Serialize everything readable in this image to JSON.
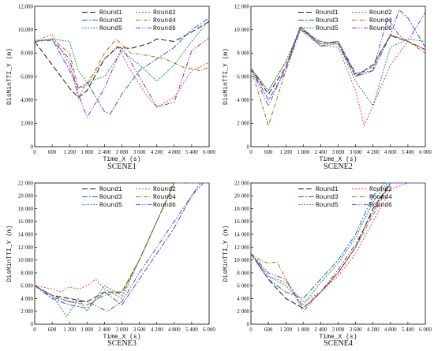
{
  "figure": {
    "series_colors": [
      "#1a1a1a",
      "#e8473d",
      "#2f5ed8",
      "#8c7a00",
      "#1c9a5a",
      "#8a2bd8"
    ],
    "series_dashes": [
      "7,3",
      "2,2",
      "7,2,2,2",
      "5,2,1,2",
      "2,1.5",
      "6,2,1.5,2,1.5,2"
    ]
  },
  "chart_data": [
    {
      "type": "line",
      "title": "SCENE1",
      "xlabel": "Time_X (s)",
      "ylabel": "DisMinTTI_Y (m)",
      "xlim": [
        0,
        6000
      ],
      "ylim": [
        0,
        12000
      ],
      "x_ticks": [
        0,
        600,
        1200,
        1800,
        2400,
        3000,
        3600,
        4200,
        4800,
        5400,
        6000
      ],
      "x_tick_labels": [
        "0",
        "600",
        "1 200",
        "1 800",
        "2 400",
        "3 000",
        "3 600",
        "4 200",
        "4 800",
        "5 400",
        "6 000"
      ],
      "y_ticks": [
        0,
        2000,
        4000,
        6000,
        8000,
        10000,
        12000
      ],
      "y_tick_labels": [
        "0",
        "2,000",
        "4,000",
        "6,000",
        "8,000",
        "10,000",
        "12,000"
      ],
      "legend_position": "top-right",
      "series": [
        {
          "name": "Round1",
          "x": [
            0,
            600,
            1200,
            1500,
            1800,
            2400,
            2850,
            3300,
            3900,
            4200,
            4800,
            5400,
            6000
          ],
          "y": [
            9000,
            7000,
            5000,
            4200,
            4800,
            7500,
            8500,
            8400,
            8800,
            9200,
            9000,
            9800,
            10700
          ]
        },
        {
          "name": "Round2",
          "x": [
            0,
            600,
            1200,
            1500,
            1800,
            2400,
            2850,
            3300,
            3900,
            4200,
            4800,
            5400,
            6000
          ],
          "y": [
            9000,
            9600,
            7000,
            4200,
            5500,
            7500,
            8600,
            6500,
            4200,
            3400,
            4200,
            6500,
            7200
          ]
        },
        {
          "name": "Round3",
          "x": [
            0,
            600,
            1200,
            1500,
            1800,
            2400,
            2600,
            3000,
            3600,
            4200,
            4800,
            5400,
            6000
          ],
          "y": [
            9000,
            9200,
            6500,
            5000,
            5500,
            3000,
            2800,
            4500,
            6500,
            7500,
            8500,
            10000,
            11000
          ]
        },
        {
          "name": "Round4",
          "x": [
            0,
            600,
            1200,
            1500,
            1800,
            2400,
            2800,
            3300,
            3900,
            4500,
            5100,
            5700,
            6000
          ],
          "y": [
            9000,
            9200,
            8000,
            5000,
            5200,
            8000,
            9200,
            8000,
            7800,
            7500,
            6800,
            6500,
            6800
          ]
        },
        {
          "name": "Round5",
          "x": [
            0,
            600,
            1200,
            1500,
            1800,
            2400,
            3000,
            3600,
            4200,
            4800,
            5400,
            6000
          ],
          "y": [
            9000,
            9200,
            9000,
            6500,
            5500,
            6000,
            8200,
            7000,
            5600,
            7000,
            9000,
            10800
          ]
        },
        {
          "name": "Round6",
          "x": [
            0,
            600,
            1200,
            1500,
            1800,
            2400,
            3000,
            3600,
            4200,
            4800,
            5400,
            6000
          ],
          "y": [
            9000,
            9100,
            7500,
            4500,
            2500,
            5000,
            8500,
            6000,
            3400,
            3800,
            8200,
            9300
          ]
        }
      ]
    },
    {
      "type": "line",
      "title": "SCENE2",
      "xlabel": "Time_X (s)",
      "ylabel": "DisMinTTI_Y (m)",
      "xlim": [
        0,
        6000
      ],
      "ylim": [
        0,
        12000
      ],
      "x_ticks": [
        0,
        600,
        1200,
        1800,
        2400,
        3000,
        3600,
        4200,
        4800,
        5400,
        6000
      ],
      "x_tick_labels": [
        "0",
        "600",
        "1 200",
        "1 800",
        "2 400",
        "3 000",
        "3 600",
        "4 200",
        "4 800",
        "5 400",
        "6 000"
      ],
      "y_ticks": [
        0,
        2000,
        4000,
        6000,
        8000,
        10000,
        12000
      ],
      "y_tick_labels": [
        "0",
        "2 000",
        "4 000",
        "6 000",
        "8 000",
        "10 000",
        "12 000"
      ],
      "legend_position": "top-right",
      "series": [
        {
          "name": "Round1",
          "x": [
            0,
            600,
            1200,
            1700,
            2400,
            3000,
            3600,
            4200,
            4800,
            5400,
            6000
          ],
          "y": [
            6700,
            4500,
            6800,
            10200,
            8800,
            9000,
            6000,
            7000,
            9500,
            9000,
            8300
          ]
        },
        {
          "name": "Round2",
          "x": [
            0,
            600,
            1200,
            1700,
            2400,
            3000,
            3600,
            3900,
            4200,
            4800,
            5400,
            6000
          ],
          "y": [
            6700,
            4800,
            7200,
            10200,
            8600,
            8500,
            4800,
            1800,
            3500,
            7000,
            9000,
            8300
          ]
        },
        {
          "name": "Round3",
          "x": [
            0,
            600,
            1200,
            1700,
            2400,
            3000,
            3600,
            4200,
            4800,
            5100,
            5400,
            6000
          ],
          "y": [
            6700,
            4000,
            6500,
            10000,
            9000,
            8800,
            6000,
            6500,
            9500,
            11700,
            11000,
            8500
          ]
        },
        {
          "name": "Round4",
          "x": [
            0,
            600,
            1200,
            1700,
            2400,
            3000,
            3600,
            4200,
            4800,
            5400,
            6000
          ],
          "y": [
            6700,
            1800,
            6500,
            10300,
            8800,
            9000,
            6200,
            6800,
            9600,
            9000,
            8000
          ]
        },
        {
          "name": "Round5",
          "x": [
            0,
            600,
            1200,
            1700,
            2400,
            3000,
            3600,
            4200,
            4800,
            5400,
            6000
          ],
          "y": [
            6700,
            4800,
            7300,
            10000,
            8600,
            8800,
            5600,
            3500,
            8500,
            9200,
            9000
          ]
        },
        {
          "name": "Round6",
          "x": [
            0,
            600,
            1200,
            1700,
            2400,
            3000,
            3600,
            4200,
            4700,
            5100,
            5400,
            6000
          ],
          "y": [
            6700,
            3500,
            6800,
            10200,
            8600,
            9000,
            6300,
            6500,
            11000,
            9500,
            9000,
            11500
          ]
        }
      ]
    },
    {
      "type": "line",
      "title": "SCENE3",
      "xlabel": "Time_X (s)",
      "ylabel": "DisMinTTI_Y (m)",
      "xlim": [
        0,
        6000
      ],
      "ylim": [
        0,
        22000
      ],
      "x_ticks": [
        0,
        600,
        1200,
        1800,
        2400,
        3000,
        3600,
        4200,
        4800,
        5400,
        6000
      ],
      "x_tick_labels": [
        "0",
        "600",
        "1 200",
        "1 800",
        "2 400",
        "3 000",
        "3 600",
        "4 200",
        "4 800",
        "5 400",
        "6 000"
      ],
      "y_ticks": [
        0,
        2000,
        4000,
        6000,
        8000,
        10000,
        12000,
        14000,
        16000,
        18000,
        20000,
        22000
      ],
      "y_tick_labels": [
        "0",
        "2 000",
        "4 000",
        "6 000",
        "8 000",
        "10 000",
        "12 000",
        "14 000",
        "16 000",
        "18 000",
        "20 000",
        "22 000"
      ],
      "legend_position": "top-right",
      "series": [
        {
          "name": "Round1",
          "x": [
            0,
            600,
            1200,
            1800,
            2400,
            3000,
            3600,
            4200,
            4800,
            5400,
            6000
          ],
          "y": [
            6000,
            4500,
            4000,
            3500,
            5000,
            5000,
            10000,
            16000,
            22000,
            22000,
            22000
          ]
        },
        {
          "name": "Round2",
          "x": [
            0,
            600,
            900,
            1200,
            1500,
            1800,
            2100,
            2400,
            3000,
            3600,
            4200,
            4800,
            5400,
            6000
          ],
          "y": [
            6000,
            5500,
            5000,
            5800,
            5500,
            6000,
            7000,
            5500,
            4000,
            10000,
            16000,
            22000,
            22000,
            22000
          ]
        },
        {
          "name": "Round3",
          "x": [
            0,
            600,
            1200,
            1800,
            2400,
            3000,
            3600,
            4200,
            4800,
            5400,
            5700,
            6000
          ],
          "y": [
            6000,
            4000,
            3000,
            2500,
            5000,
            3000,
            7000,
            11000,
            15000,
            20000,
            22000,
            22000
          ]
        },
        {
          "name": "Round4",
          "x": [
            0,
            600,
            1200,
            1800,
            2400,
            3000,
            3600,
            4200,
            4800,
            5400,
            6000
          ],
          "y": [
            6000,
            4500,
            3500,
            3000,
            4500,
            5000,
            10000,
            16000,
            22000,
            22000,
            22000
          ]
        },
        {
          "name": "Round5",
          "x": [
            0,
            600,
            1100,
            1500,
            1800,
            2400,
            3000,
            3600,
            4200,
            4800,
            5400,
            6000
          ],
          "y": [
            6000,
            4500,
            1200,
            4000,
            2000,
            6000,
            4500,
            10000,
            16000,
            22000,
            22000,
            22000
          ]
        },
        {
          "name": "Round6",
          "x": [
            0,
            600,
            1200,
            1800,
            2500,
            3000,
            3600,
            4200,
            4800,
            5400,
            5800,
            6000
          ],
          "y": [
            6000,
            4200,
            3500,
            3500,
            2000,
            3500,
            8000,
            12000,
            16000,
            20000,
            22000,
            22000
          ]
        }
      ]
    },
    {
      "type": "line",
      "title": "SCENE4",
      "xlabel": "Time_X (s)",
      "ylabel": "DisMinTTI_Y (m)",
      "xlim": [
        0,
        6000
      ],
      "ylim": [
        0,
        22000
      ],
      "x_ticks": [
        0,
        600,
        1200,
        1800,
        2400,
        3000,
        3600,
        4200,
        4800,
        5400,
        6000
      ],
      "x_tick_labels": [
        "0",
        "600",
        "1 200",
        "1 800",
        "2 400",
        "3 000",
        "3 600",
        "4 200",
        "4 800",
        "5 400",
        "6 000"
      ],
      "y_ticks": [
        0,
        2000,
        4000,
        6000,
        8000,
        10000,
        12000,
        14000,
        16000,
        18000,
        20000,
        22000
      ],
      "y_tick_labels": [
        "0",
        "2 000",
        "4 000",
        "6 000",
        "8 000",
        "10 000",
        "12 000",
        "14 000",
        "16 000",
        "18 000",
        "20 000",
        "22 000"
      ],
      "legend_position": "top-right",
      "series": [
        {
          "name": "Round1",
          "x": [
            0,
            600,
            1200,
            1800,
            2400,
            3000,
            3600,
            4200,
            4800,
            5400,
            6000
          ],
          "y": [
            11000,
            7000,
            4000,
            2500,
            5000,
            8000,
            12000,
            18000,
            22000,
            22000,
            22000
          ]
        },
        {
          "name": "Round2",
          "x": [
            0,
            600,
            1200,
            1800,
            2400,
            3000,
            3600,
            4200,
            4800,
            5400,
            6000
          ],
          "y": [
            11000,
            7500,
            6500,
            3500,
            5000,
            7500,
            11000,
            16000,
            21000,
            22000,
            22000
          ]
        },
        {
          "name": "Round3",
          "x": [
            0,
            600,
            1200,
            1800,
            2400,
            3000,
            3600,
            4200,
            4600,
            5400,
            6000
          ],
          "y": [
            11000,
            7000,
            5000,
            4000,
            7000,
            10000,
            14000,
            20000,
            22000,
            22000,
            22000
          ]
        },
        {
          "name": "Round4",
          "x": [
            0,
            300,
            600,
            900,
            1200,
            1800,
            2400,
            3000,
            3600,
            4200,
            4800,
            5400,
            6000
          ],
          "y": [
            11000,
            10000,
            9500,
            9700,
            7000,
            2000,
            5000,
            8000,
            12000,
            17000,
            22000,
            22000,
            22000
          ]
        },
        {
          "name": "Round5",
          "x": [
            0,
            600,
            1200,
            1800,
            2400,
            3000,
            3600,
            4200,
            4700,
            5400,
            6000
          ],
          "y": [
            11000,
            7500,
            6000,
            3000,
            6500,
            9500,
            13500,
            19000,
            22000,
            22000,
            22000
          ]
        },
        {
          "name": "Round6",
          "x": [
            0,
            600,
            1200,
            1800,
            2400,
            3000,
            3600,
            4200,
            4800,
            5400,
            6000
          ],
          "y": [
            11000,
            8000,
            7000,
            2500,
            5000,
            8500,
            12500,
            17500,
            22000,
            22000,
            22000
          ]
        }
      ]
    }
  ]
}
